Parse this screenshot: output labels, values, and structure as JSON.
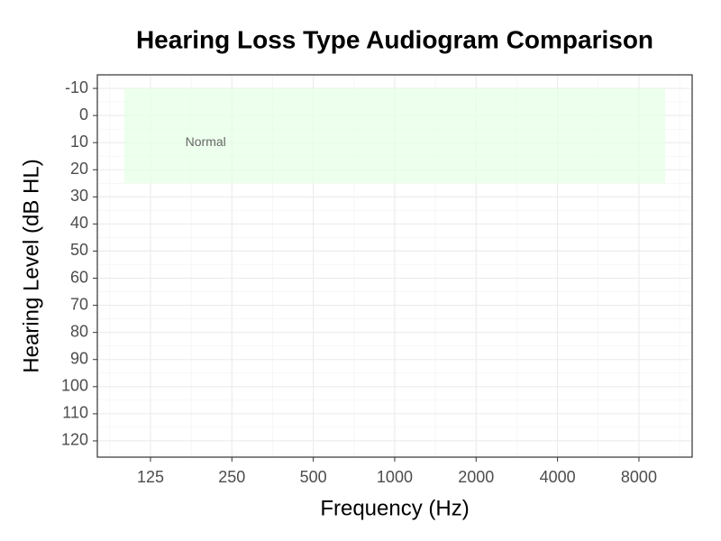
{
  "chart_data": {
    "type": "line",
    "title": "Hearing Loss Type Audiogram Comparison",
    "x_label": "Frequency (Hz)",
    "y_label": "Hearing Level (dB HL)",
    "x_log": true,
    "y_reversed": true,
    "grid": true,
    "xlim": [
      79.5,
      12587
    ],
    "ylim": [
      -15,
      126
    ],
    "xticks": [
      125,
      250,
      500,
      1000,
      2000,
      4000,
      8000
    ],
    "yticks": [
      -10,
      0,
      10,
      20,
      30,
      40,
      50,
      60,
      70,
      80,
      90,
      100,
      110,
      120
    ],
    "bands": [
      {
        "x": [
          100,
          10000
        ],
        "y": [
          -10,
          25
        ],
        "color": "#e6ffe6"
      }
    ],
    "annotations": [
      {
        "text": "Normal",
        "x": 200,
        "y": 10
      }
    ],
    "series": []
  }
}
